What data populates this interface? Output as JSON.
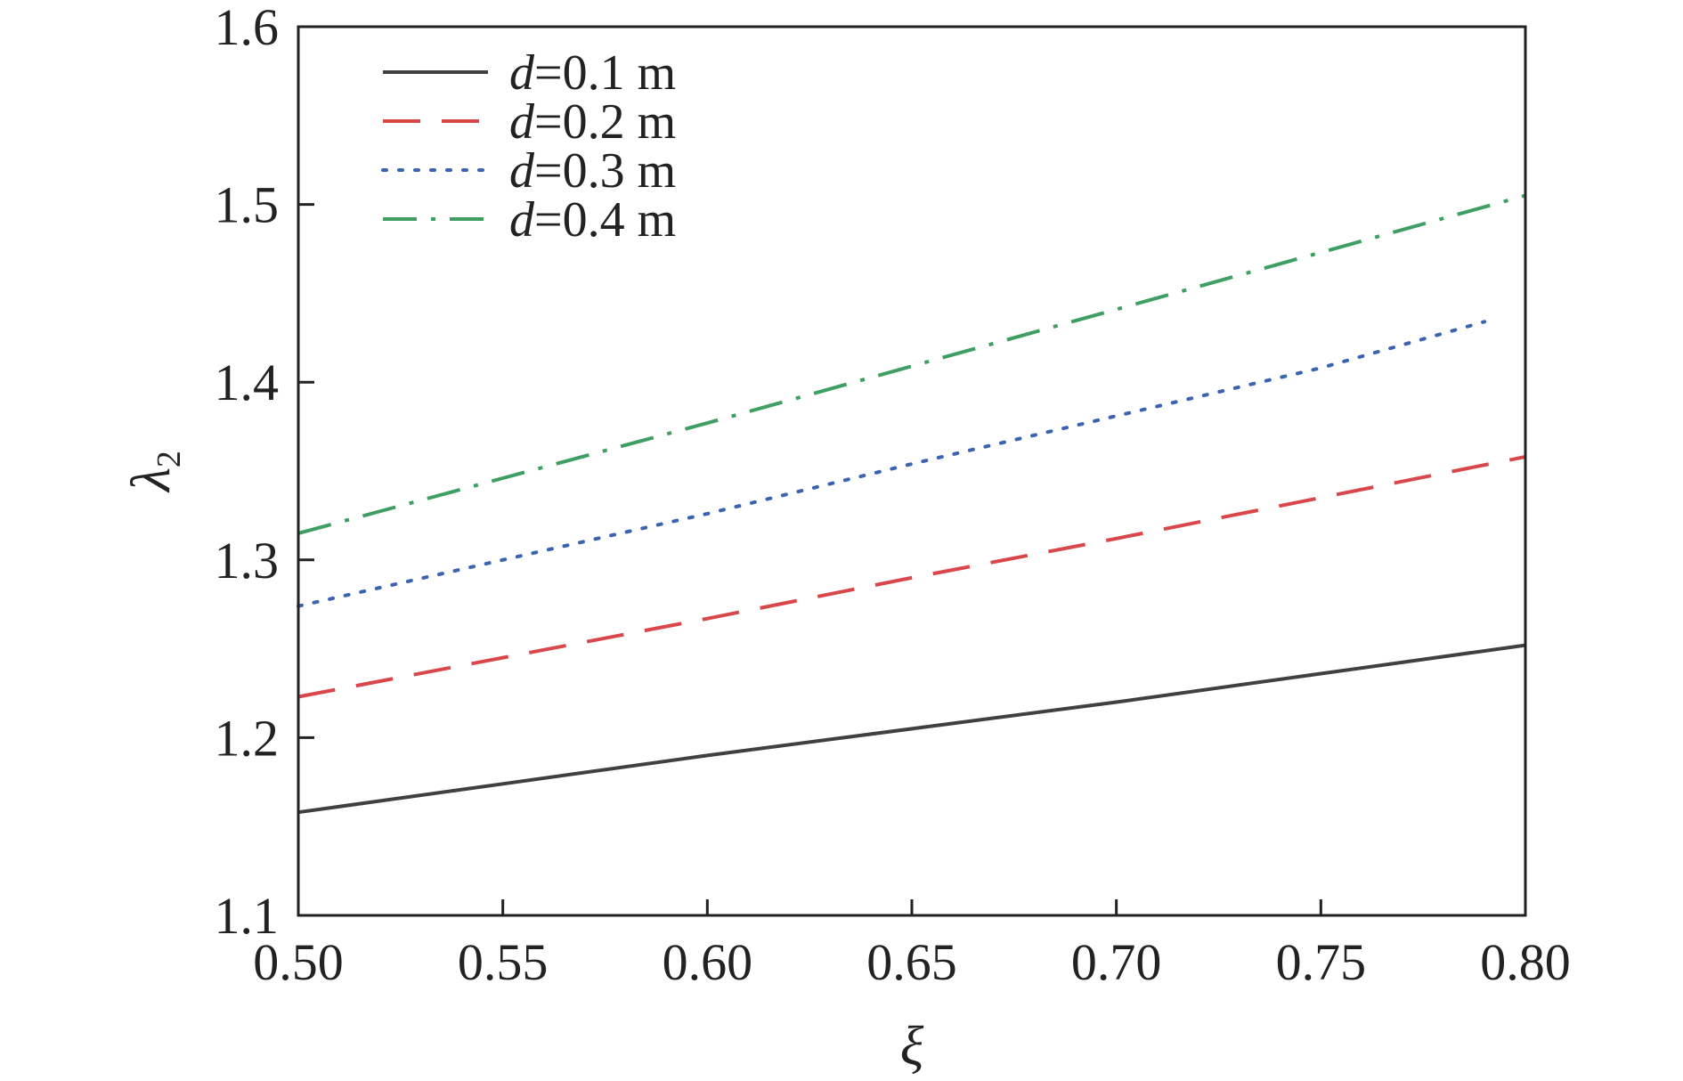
{
  "chart_data": {
    "type": "line",
    "title": "",
    "xlabel": "ξ",
    "ylabel": "λ",
    "ylabel_subscript": "2",
    "xlim": [
      0.5,
      0.8
    ],
    "ylim": [
      1.1,
      1.6
    ],
    "xticks": [
      0.5,
      0.55,
      0.6,
      0.65,
      0.7,
      0.75,
      0.8
    ],
    "xtick_labels": [
      "0.50",
      "0.55",
      "0.60",
      "0.65",
      "0.70",
      "0.75",
      "0.80"
    ],
    "yticks": [
      1.1,
      1.2,
      1.3,
      1.4,
      1.5,
      1.6
    ],
    "ytick_labels": [
      "1.1",
      "1.2",
      "1.3",
      "1.4",
      "1.5",
      "1.6"
    ],
    "grid": false,
    "legend_position": "top-left",
    "legend_var": "d",
    "series": [
      {
        "name": "=0.1 m",
        "color": "#404040",
        "style": "solid",
        "x": [
          0.5,
          0.55,
          0.6,
          0.65,
          0.7,
          0.75,
          0.8
        ],
        "y": [
          1.158,
          1.174,
          1.19,
          1.205,
          1.22,
          1.236,
          1.252
        ]
      },
      {
        "name": "=0.2 m",
        "color": "#d9474b",
        "style": "dashed",
        "x": [
          0.5,
          0.55,
          0.6,
          0.65,
          0.7,
          0.75,
          0.8
        ],
        "y": [
          1.223,
          1.245,
          1.267,
          1.29,
          1.312,
          1.335,
          1.358
        ]
      },
      {
        "name": "=0.3 m",
        "color": "#3a63b0",
        "style": "dotted",
        "x": [
          0.5,
          0.55,
          0.6,
          0.65,
          0.7,
          0.75,
          0.79
        ],
        "y": [
          1.274,
          1.3,
          1.326,
          1.354,
          1.381,
          1.408,
          1.434
        ]
      },
      {
        "name": "=0.4 m",
        "color": "#3f9e62",
        "style": "dash-dot",
        "x": [
          0.5,
          0.55,
          0.6,
          0.65,
          0.7,
          0.75,
          0.8
        ],
        "y": [
          1.315,
          1.346,
          1.377,
          1.409,
          1.441,
          1.473,
          1.505
        ]
      }
    ]
  }
}
